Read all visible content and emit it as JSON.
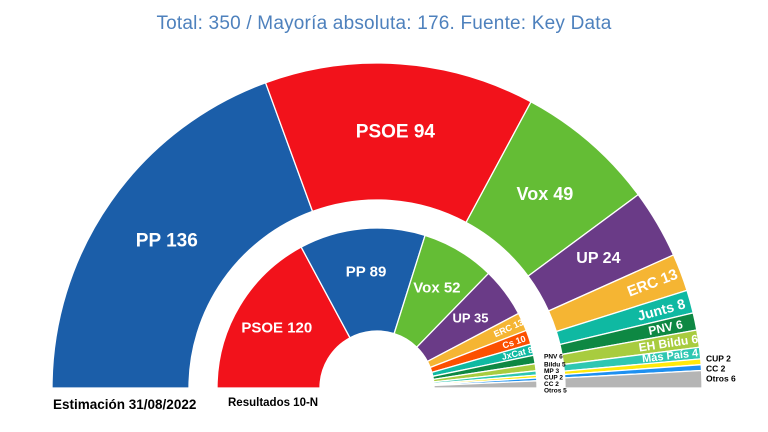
{
  "title": {
    "text": "Total: 350 / Mayoría absoluta: 176. Fuente: Key Data",
    "color": "#4E81BD"
  },
  "chart_data": {
    "type": "parliament-half-donut",
    "total_seats": 350,
    "majority": 176,
    "source": "Key Data",
    "legend_position": "bottom",
    "rings": [
      {
        "id": "estimacion",
        "label": "Estimación 31/08/2022",
        "position": "outer",
        "parties": [
          {
            "name": "PP",
            "seats": 136,
            "color": "#1B5EA9"
          },
          {
            "name": "PSOE",
            "seats": 94,
            "color": "#F2121B"
          },
          {
            "name": "Vox",
            "seats": 49,
            "color": "#64BD35"
          },
          {
            "name": "UP",
            "seats": 24,
            "color": "#6A3B87"
          },
          {
            "name": "ERC",
            "seats": 13,
            "color": "#F5B533"
          },
          {
            "name": "Junts",
            "seats": 8,
            "color": "#0FB9A2"
          },
          {
            "name": "PNV",
            "seats": 6,
            "color": "#0E8843"
          },
          {
            "name": "EH Bildu",
            "seats": 6,
            "color": "#A8CC3F"
          },
          {
            "name": "Más País",
            "seats": 4,
            "color": "#2FC7B2"
          },
          {
            "name": "CUP",
            "seats": 2,
            "color": "#FFE90B",
            "label_outside": true
          },
          {
            "name": "CC",
            "seats": 2,
            "color": "#1E90F0",
            "label_outside": true
          },
          {
            "name": "Otros",
            "seats": 6,
            "color": "#B5B5B5",
            "label_outside": true
          }
        ]
      },
      {
        "id": "resultados",
        "label": "Resultados 10-N",
        "position": "inner",
        "parties": [
          {
            "name": "PSOE",
            "seats": 120,
            "color": "#F2121B"
          },
          {
            "name": "PP",
            "seats": 89,
            "color": "#1B5EA9"
          },
          {
            "name": "Vox",
            "seats": 52,
            "color": "#64BD35"
          },
          {
            "name": "UP",
            "seats": 35,
            "color": "#6A3B87"
          },
          {
            "name": "ERC",
            "seats": 13,
            "color": "#F5B533"
          },
          {
            "name": "Cs",
            "seats": 10,
            "color": "#FC5000"
          },
          {
            "name": "JxCat",
            "seats": 8,
            "color": "#0FB9A2"
          },
          {
            "name": "PNV",
            "seats": 6,
            "color": "#0E8843",
            "label_outside": true
          },
          {
            "name": "Bildu",
            "seats": 5,
            "color": "#A8CC3F",
            "label_outside": true
          },
          {
            "name": "MP",
            "seats": 3,
            "color": "#2FC7B2",
            "label_outside": true
          },
          {
            "name": "CUP",
            "seats": 2,
            "color": "#FFE90B",
            "label_outside": true
          },
          {
            "name": "CC",
            "seats": 2,
            "color": "#1E90F0",
            "label_outside": true
          },
          {
            "name": "Otros",
            "seats": 5,
            "color": "#B5B5B5",
            "label_outside": true
          }
        ]
      }
    ]
  }
}
